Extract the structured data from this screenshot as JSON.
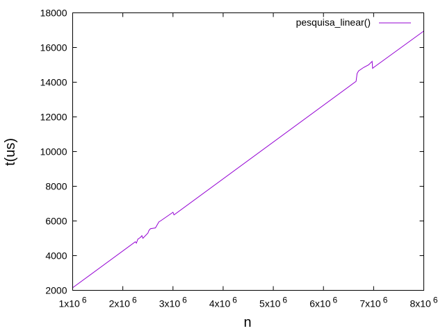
{
  "chart_data": {
    "type": "line",
    "xlabel": "n",
    "ylabel": "t(us)",
    "xlim": [
      1000000,
      8000000
    ],
    "ylim": [
      2000,
      18000
    ],
    "x_ticks": [
      {
        "value": 1000000,
        "mantissa": "1x10",
        "exp": "6"
      },
      {
        "value": 2000000,
        "mantissa": "2x10",
        "exp": "6"
      },
      {
        "value": 3000000,
        "mantissa": "3x10",
        "exp": "6"
      },
      {
        "value": 4000000,
        "mantissa": "4x10",
        "exp": "6"
      },
      {
        "value": 5000000,
        "mantissa": "5x10",
        "exp": "6"
      },
      {
        "value": 6000000,
        "mantissa": "6x10",
        "exp": "6"
      },
      {
        "value": 7000000,
        "mantissa": "7x10",
        "exp": "6"
      },
      {
        "value": 8000000,
        "mantissa": "8x10",
        "exp": "6"
      }
    ],
    "y_ticks": [
      2000,
      4000,
      6000,
      8000,
      10000,
      12000,
      14000,
      16000,
      18000
    ],
    "grid": false,
    "legend_position": "top-right",
    "series": [
      {
        "name": "pesquisa_linear()",
        "color": "#9400d3",
        "points": [
          [
            1000000,
            2150
          ],
          [
            2250000,
            4800
          ],
          [
            2270000,
            4720
          ],
          [
            2300000,
            4950
          ],
          [
            2350000,
            5050
          ],
          [
            2380000,
            5150
          ],
          [
            2400000,
            5000
          ],
          [
            2500000,
            5300
          ],
          [
            2520000,
            5450
          ],
          [
            2550000,
            5550
          ],
          [
            2650000,
            5600
          ],
          [
            2700000,
            5850
          ],
          [
            2720000,
            5950
          ],
          [
            2750000,
            6000
          ],
          [
            2800000,
            6100
          ],
          [
            2900000,
            6300
          ],
          [
            2950000,
            6400
          ],
          [
            3000000,
            6500
          ],
          [
            3020000,
            6350
          ],
          [
            6650000,
            14050
          ],
          [
            6670000,
            14500
          ],
          [
            6700000,
            14650
          ],
          [
            6800000,
            14850
          ],
          [
            6900000,
            15000
          ],
          [
            6970000,
            15200
          ],
          [
            6980000,
            14800
          ],
          [
            7000000,
            14850
          ],
          [
            8000000,
            16950
          ]
        ]
      }
    ]
  }
}
